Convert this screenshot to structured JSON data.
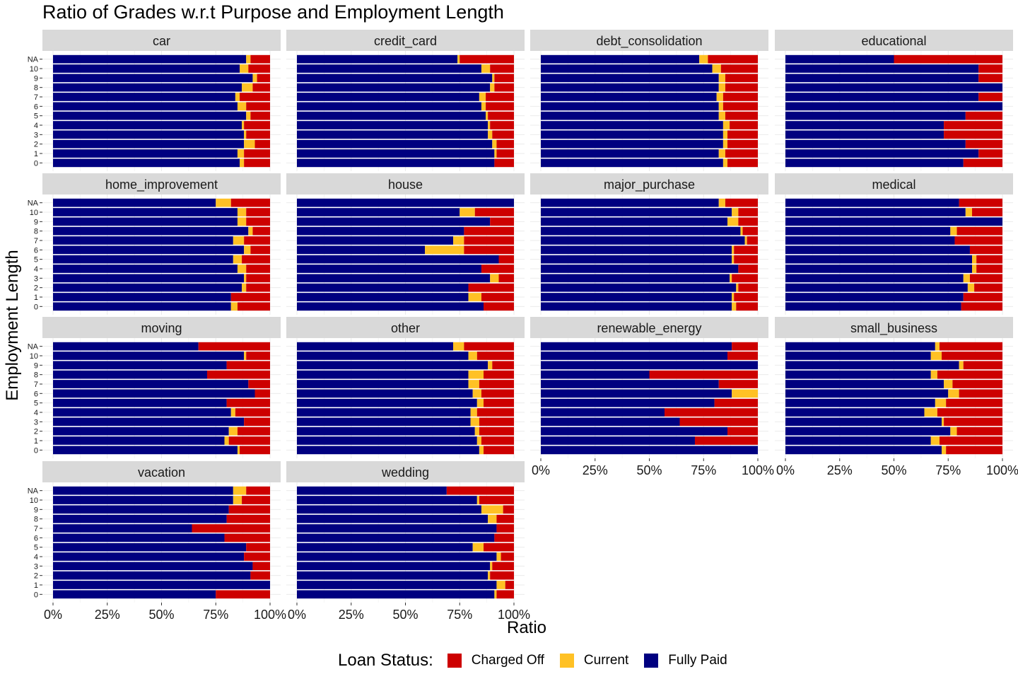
{
  "chart_data": {
    "type": "bar",
    "orientation": "horizontal",
    "stacked": "percent",
    "title": "Ratio of Grades w.r.t Purpose and Employment Length",
    "xlabel": "Ratio",
    "ylabel": "Employment Length",
    "x_ticks": [
      "0%",
      "25%",
      "50%",
      "75%",
      "100%"
    ],
    "xlim": [
      0,
      1
    ],
    "grid": true,
    "legend": {
      "title": "Loan Status:",
      "position": "bottom"
    },
    "categories": [
      "NA",
      "10",
      "9",
      "8",
      "7",
      "6",
      "5",
      "4",
      "3",
      "2",
      "1",
      "0"
    ],
    "series": [
      {
        "name": "Fully Paid",
        "color": "#000080"
      },
      {
        "name": "Current",
        "color": "#FFC125"
      },
      {
        "name": "Charged Off",
        "color": "#CD0000"
      }
    ],
    "facets": [
      {
        "name": "car",
        "fully_paid": [
          0.89,
          0.86,
          0.92,
          0.87,
          0.84,
          0.85,
          0.89,
          0.87,
          0.88,
          0.88,
          0.85,
          0.86
        ],
        "current": [
          0.02,
          0.04,
          0.02,
          0.05,
          0.02,
          0.04,
          0.02,
          0.01,
          0.01,
          0.05,
          0.03,
          0.02
        ]
      },
      {
        "name": "credit_card",
        "fully_paid": [
          0.74,
          0.85,
          0.9,
          0.89,
          0.84,
          0.85,
          0.87,
          0.88,
          0.88,
          0.9,
          0.91,
          0.91
        ],
        "current": [
          0.01,
          0.04,
          0.01,
          0.02,
          0.03,
          0.02,
          0.01,
          0.01,
          0.02,
          0.02,
          0.01,
          0.0
        ]
      },
      {
        "name": "debt_consolidation",
        "fully_paid": [
          0.73,
          0.79,
          0.82,
          0.82,
          0.81,
          0.82,
          0.82,
          0.84,
          0.84,
          0.84,
          0.82,
          0.84
        ],
        "current": [
          0.04,
          0.04,
          0.03,
          0.03,
          0.03,
          0.02,
          0.03,
          0.03,
          0.02,
          0.02,
          0.03,
          0.02
        ]
      },
      {
        "name": "educational",
        "fully_paid": [
          0.5,
          0.89,
          0.89,
          1.0,
          0.89,
          1.0,
          0.83,
          0.73,
          0.73,
          0.83,
          0.89,
          0.82
        ],
        "current": [
          0,
          0,
          0,
          0,
          0,
          0,
          0,
          0,
          0,
          0,
          0,
          0
        ]
      },
      {
        "name": "home_improvement",
        "fully_paid": [
          0.75,
          0.85,
          0.85,
          0.9,
          0.83,
          0.88,
          0.83,
          0.85,
          0.88,
          0.87,
          0.82,
          0.82
        ],
        "current": [
          0.07,
          0.04,
          0.04,
          0.02,
          0.05,
          0.03,
          0.04,
          0.04,
          0.01,
          0.02,
          0.0,
          0.03
        ]
      },
      {
        "name": "house",
        "fully_paid": [
          1.0,
          0.75,
          0.89,
          0.77,
          0.72,
          0.59,
          0.93,
          0.85,
          0.89,
          0.79,
          0.79,
          0.86
        ],
        "current": [
          0.0,
          0.07,
          0.0,
          0.0,
          0.05,
          0.18,
          0.0,
          0.0,
          0.04,
          0.0,
          0.06,
          0.0
        ]
      },
      {
        "name": "major_purchase",
        "fully_paid": [
          0.82,
          0.88,
          0.86,
          0.92,
          0.94,
          0.88,
          0.88,
          0.91,
          0.87,
          0.9,
          0.88,
          0.88
        ],
        "current": [
          0.03,
          0.03,
          0.05,
          0.01,
          0.01,
          0.01,
          0.01,
          0.0,
          0.01,
          0.01,
          0.01,
          0.02
        ]
      },
      {
        "name": "medical",
        "fully_paid": [
          0.8,
          0.83,
          1.0,
          0.76,
          0.78,
          0.85,
          0.86,
          0.86,
          0.82,
          0.84,
          0.82,
          0.81
        ],
        "current": [
          0.0,
          0.03,
          0.0,
          0.03,
          0.0,
          0.0,
          0.02,
          0.02,
          0.03,
          0.03,
          0.0,
          0.0
        ]
      },
      {
        "name": "moving",
        "fully_paid": [
          0.67,
          0.88,
          0.8,
          0.71,
          0.9,
          0.93,
          0.8,
          0.82,
          0.88,
          0.81,
          0.79,
          0.85
        ],
        "current": [
          0.0,
          0.01,
          0.0,
          0.0,
          0.0,
          0.0,
          0.0,
          0.02,
          0.0,
          0.04,
          0.02,
          0.01
        ]
      },
      {
        "name": "other",
        "fully_paid": [
          0.72,
          0.79,
          0.88,
          0.79,
          0.79,
          0.81,
          0.83,
          0.8,
          0.8,
          0.82,
          0.83,
          0.84
        ],
        "current": [
          0.05,
          0.04,
          0.02,
          0.07,
          0.05,
          0.04,
          0.03,
          0.03,
          0.04,
          0.02,
          0.02,
          0.02
        ]
      },
      {
        "name": "renewable_energy",
        "fully_paid": [
          0.88,
          0.86,
          1.0,
          0.5,
          0.82,
          0.88,
          0.8,
          0.57,
          0.64,
          0.86,
          0.71,
          1.0
        ],
        "current": [
          0.0,
          0.0,
          0.0,
          0.0,
          0.0,
          0.12,
          0.0,
          0.0,
          0.0,
          0.0,
          0.0,
          0.0
        ]
      },
      {
        "name": "small_business",
        "fully_paid": [
          0.69,
          0.67,
          0.8,
          0.67,
          0.73,
          0.75,
          0.69,
          0.64,
          0.72,
          0.76,
          0.67,
          0.72
        ],
        "current": [
          0.02,
          0.05,
          0.02,
          0.03,
          0.04,
          0.05,
          0.05,
          0.06,
          0.01,
          0.03,
          0.04,
          0.02
        ]
      },
      {
        "name": "vacation",
        "fully_paid": [
          0.83,
          0.83,
          0.81,
          0.8,
          0.64,
          0.79,
          0.89,
          0.88,
          0.92,
          0.91,
          1.0,
          0.75
        ],
        "current": [
          0.06,
          0.04,
          0.0,
          0.0,
          0.0,
          0.0,
          0.0,
          0.0,
          0.0,
          0.0,
          0.0,
          0.0
        ]
      },
      {
        "name": "wedding",
        "fully_paid": [
          0.69,
          0.83,
          0.85,
          0.88,
          0.92,
          0.91,
          0.81,
          0.92,
          0.89,
          0.88,
          0.92,
          0.91
        ],
        "current": [
          0.0,
          0.01,
          0.1,
          0.04,
          0.0,
          0.0,
          0.05,
          0.02,
          0.01,
          0.01,
          0.04,
          0.01
        ]
      }
    ]
  }
}
